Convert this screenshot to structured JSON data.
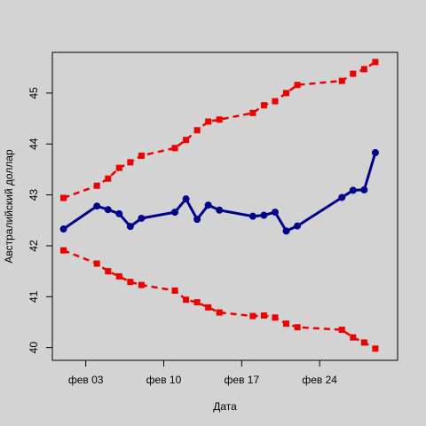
{
  "chart_data": {
    "type": "line",
    "xlabel": "Дата",
    "ylabel": "Австралийский доллар",
    "x_ticks": [
      {
        "date": "2017-02-03",
        "label": "фев 03"
      },
      {
        "date": "2017-02-10",
        "label": "фев 10"
      },
      {
        "date": "2017-02-17",
        "label": "фев 17"
      },
      {
        "date": "2017-02-24",
        "label": "фев 24"
      }
    ],
    "y_ticks": [
      40,
      41,
      42,
      43,
      44,
      45
    ],
    "xlim": [
      "2017-01-31",
      "2017-03-03"
    ],
    "ylim": [
      39.75,
      45.8
    ],
    "grid": false,
    "colors": {
      "background": "#d3d3d3",
      "main": "#00008b",
      "bounds": "#ee0000"
    },
    "x": [
      "2017-02-01",
      "2017-02-04",
      "2017-02-05",
      "2017-02-06",
      "2017-02-07",
      "2017-02-08",
      "2017-02-11",
      "2017-02-12",
      "2017-02-13",
      "2017-02-14",
      "2017-02-15",
      "2017-02-18",
      "2017-02-19",
      "2017-02-20",
      "2017-02-21",
      "2017-02-22",
      "2017-02-26",
      "2017-02-27",
      "2017-02-28",
      "2017-03-01"
    ],
    "series": [
      {
        "values": [
          42.33,
          42.78,
          42.71,
          42.63,
          42.38,
          42.54,
          42.66,
          42.92,
          42.52,
          42.8,
          42.7,
          42.58,
          42.6,
          42.66,
          42.29,
          42.39,
          42.95,
          43.09,
          43.1,
          43.83
        ]
      },
      {
        "values": [
          42.94,
          43.18,
          43.32,
          43.53,
          43.64,
          43.77,
          43.92,
          44.08,
          44.27,
          44.44,
          44.48,
          44.61,
          44.76,
          44.84,
          45.0,
          45.16,
          45.24,
          45.38,
          45.47,
          45.61
        ]
      },
      {
        "values": [
          41.91,
          41.65,
          41.5,
          41.4,
          41.29,
          41.23,
          41.12,
          40.94,
          40.89,
          40.79,
          40.69,
          40.62,
          40.63,
          40.59,
          40.47,
          40.4,
          40.35,
          40.2,
          40.1,
          39.98
        ]
      }
    ]
  }
}
